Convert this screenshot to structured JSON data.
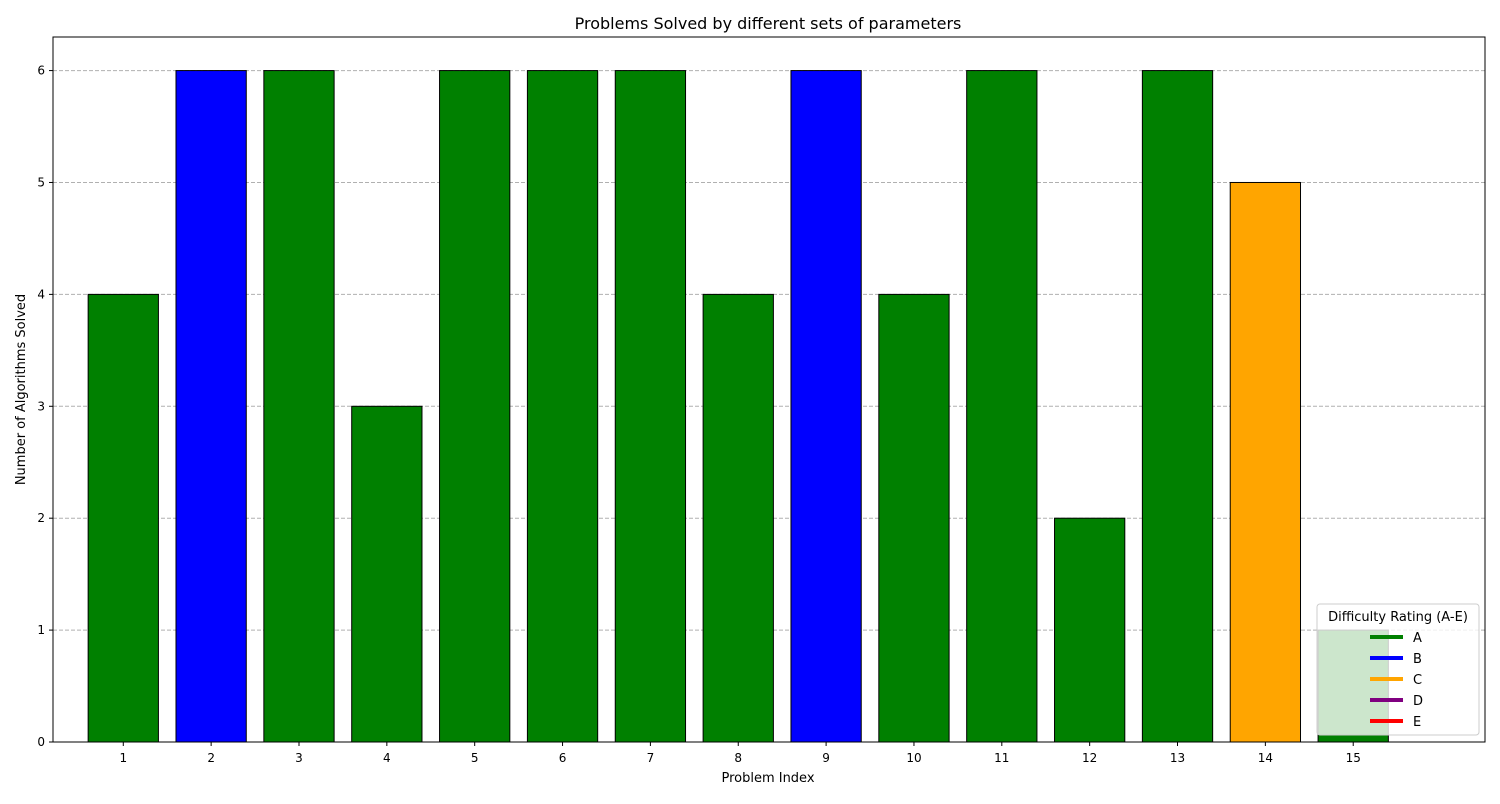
{
  "chart_data": {
    "type": "bar",
    "title": "Problems Solved by different sets of parameters",
    "xlabel": "Problem Index",
    "ylabel": "Number of Algorithms Solved",
    "categories": [
      "1",
      "2",
      "3",
      "4",
      "5",
      "6",
      "7",
      "8",
      "9",
      "10",
      "11",
      "12",
      "13",
      "14",
      "15"
    ],
    "values": [
      4,
      6,
      6,
      3,
      6,
      6,
      6,
      4,
      6,
      4,
      6,
      2,
      6,
      5,
      1
    ],
    "difficulty": [
      "A",
      "B",
      "A",
      "A",
      "A",
      "A",
      "A",
      "A",
      "B",
      "A",
      "A",
      "A",
      "A",
      "C",
      "A"
    ],
    "ylim": [
      0,
      6.3
    ],
    "yticks": [
      0,
      1,
      2,
      3,
      4,
      5,
      6
    ],
    "grid": "y-dashed",
    "legend": {
      "title": "Difficulty Rating (A-E)",
      "placement": "lower-right",
      "entries": [
        {
          "label": "A",
          "color": "#008000"
        },
        {
          "label": "B",
          "color": "#0000ff"
        },
        {
          "label": "C",
          "color": "#ffa500"
        },
        {
          "label": "D",
          "color": "#800080"
        },
        {
          "label": "E",
          "color": "#ff0000"
        }
      ]
    }
  }
}
